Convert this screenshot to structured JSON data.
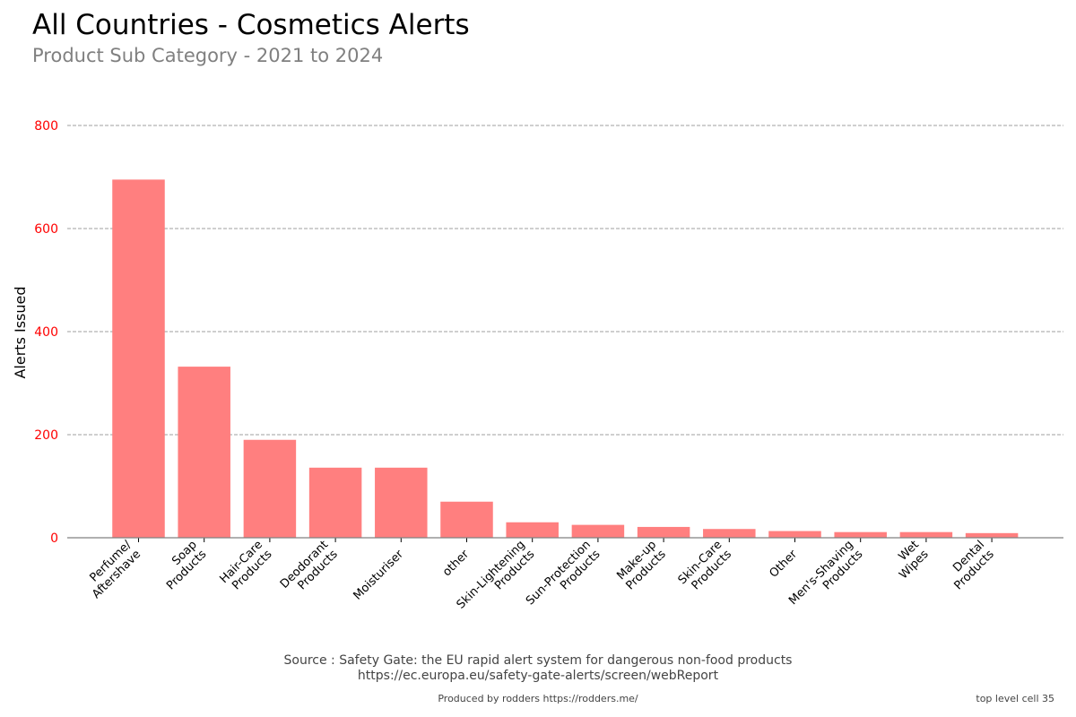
{
  "title": "All Countries - Cosmetics Alerts",
  "subtitle": "Product Sub Category - 2021 to 2024",
  "source_line1": "Source : Safety Gate: the EU rapid alert system for dangerous non-food products",
  "source_line2": "https://ec.europa.eu/safety-gate-alerts/screen/webReport",
  "credit": "Produced by rodders https://rodders.me/",
  "cell_label": "top level cell 35",
  "colors": {
    "bar": "#ff7f7f",
    "tick_label": "#ff0000",
    "grid": "#808080"
  },
  "chart_data": {
    "type": "bar",
    "title": "All Countries - Cosmetics Alerts",
    "subtitle": "Product Sub Category - 2021 to 2024",
    "xlabel": "",
    "ylabel": "Alerts Issued",
    "ylim": [
      0,
      800
    ],
    "yticks": [
      0,
      200,
      400,
      600,
      800
    ],
    "grid": true,
    "categories": [
      "Perfume/\nAftershave",
      "Soap\nProducts",
      "Hair-Care\nProducts",
      "Deodorant\nProducts",
      "Moisturiser",
      "other",
      "Skin-Lightening\nProducts",
      "Sun-Protection\nProducts",
      "Make-up\nProducts",
      "Skin-Care\nProducts",
      "Other",
      "Men's-Shaving\nProducts",
      "Wet\nWipes",
      "Dental\nProducts"
    ],
    "values": [
      695,
      332,
      190,
      136,
      136,
      70,
      30,
      25,
      21,
      17,
      13,
      11,
      11,
      9
    ]
  }
}
